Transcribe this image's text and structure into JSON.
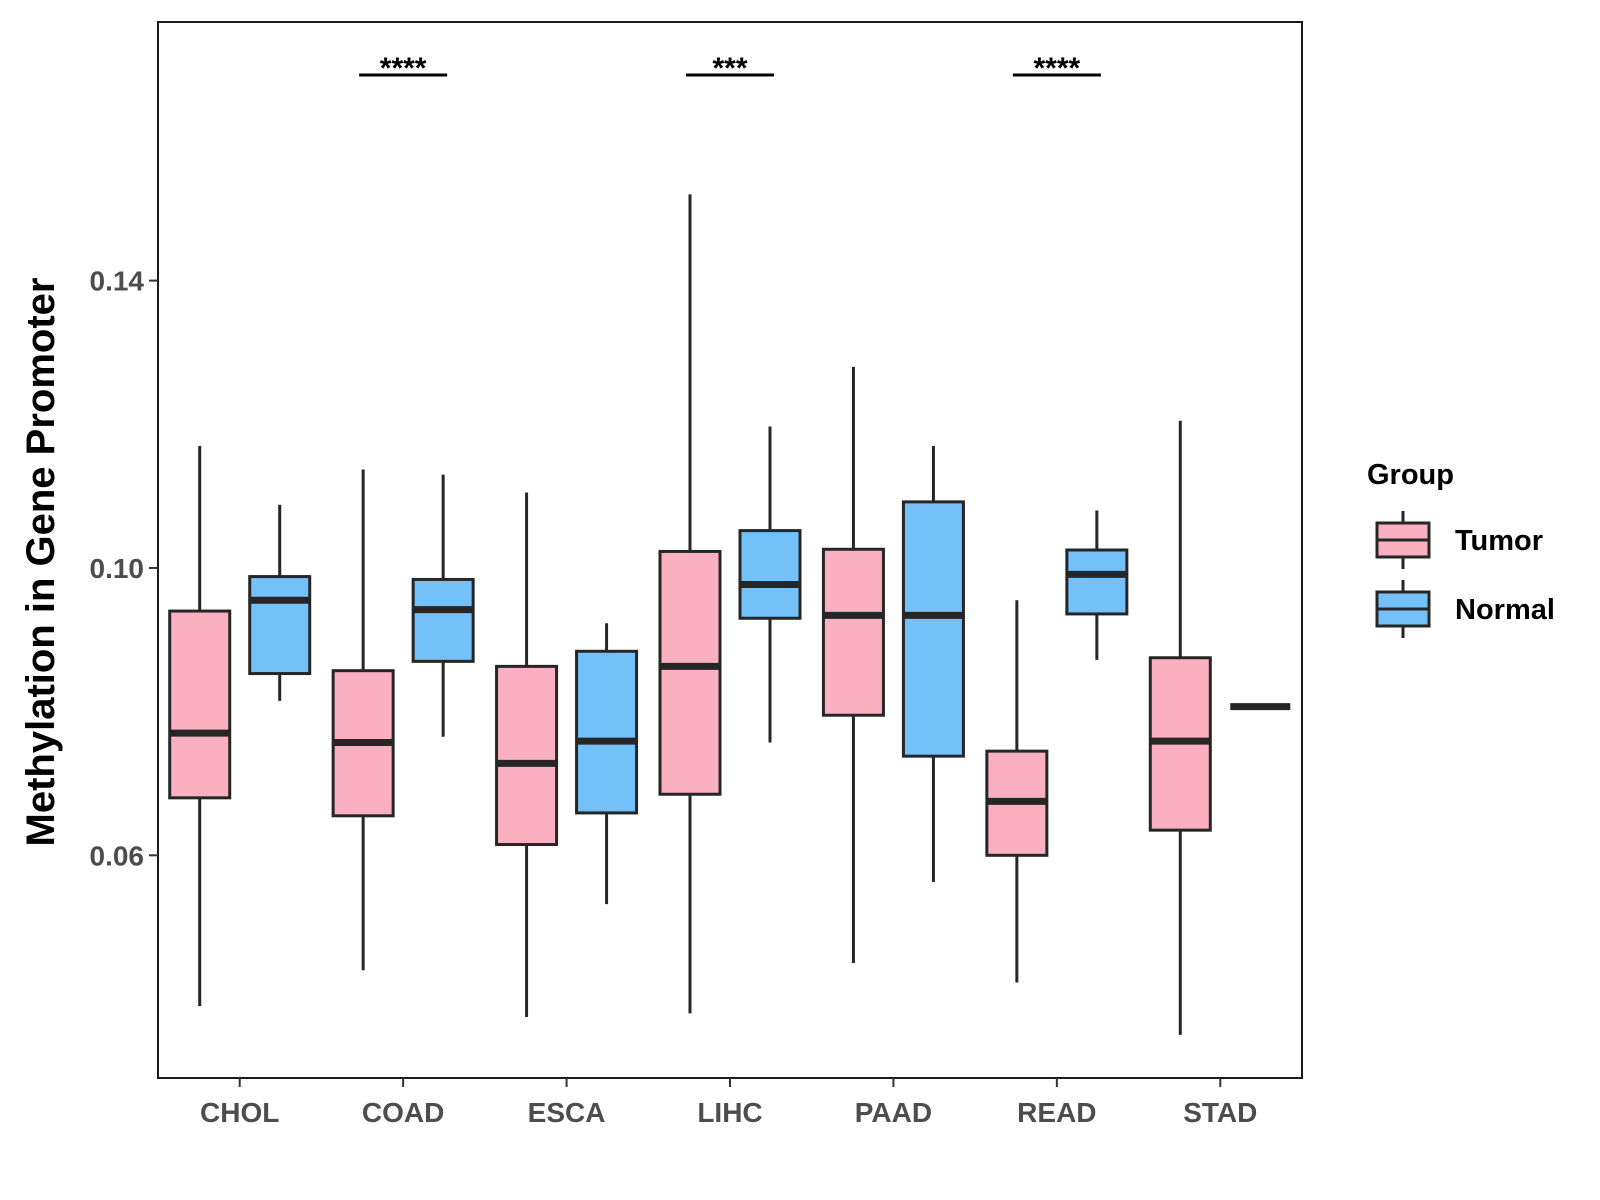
{
  "chart_data": {
    "type": "boxplot",
    "title": "",
    "xlabel": "",
    "ylabel": "Methylation in Gene Promoter",
    "ylim": [
      0.029,
      0.176
    ],
    "yticks": [
      0.06,
      0.1,
      0.14
    ],
    "ytick_labels": [
      "0.06",
      "0.10",
      "0.14"
    ],
    "categories": [
      "CHOL",
      "COAD",
      "ESCA",
      "LIHC",
      "PAAD",
      "READ",
      "STAD"
    ],
    "legend": {
      "title": "Group",
      "position": "right",
      "entries": [
        {
          "name": "Tumor",
          "color": "#fbb0c2"
        },
        {
          "name": "Normal",
          "color": "#74c0f8"
        }
      ]
    },
    "series": [
      {
        "name": "Tumor",
        "color": "#fbb0c2",
        "boxes": [
          {
            "category": "CHOL",
            "whisker_low": 0.039,
            "q1": 0.068,
            "median": 0.077,
            "q3": 0.094,
            "whisker_high": 0.117
          },
          {
            "category": "COAD",
            "whisker_low": 0.044,
            "q1": 0.0655,
            "median": 0.0757,
            "q3": 0.0857,
            "whisker_high": 0.1137
          },
          {
            "category": "ESCA",
            "whisker_low": 0.0375,
            "q1": 0.0615,
            "median": 0.0728,
            "q3": 0.0863,
            "whisker_high": 0.1105
          },
          {
            "category": "LIHC",
            "whisker_low": 0.038,
            "q1": 0.0685,
            "median": 0.0863,
            "q3": 0.1023,
            "whisker_high": 0.152
          },
          {
            "category": "PAAD",
            "whisker_low": 0.045,
            "q1": 0.0795,
            "median": 0.0934,
            "q3": 0.1026,
            "whisker_high": 0.128
          },
          {
            "category": "READ",
            "whisker_low": 0.0423,
            "q1": 0.06,
            "median": 0.0675,
            "q3": 0.0745,
            "whisker_high": 0.0955
          },
          {
            "category": "STAD",
            "whisker_low": 0.035,
            "q1": 0.0635,
            "median": 0.0759,
            "q3": 0.0875,
            "whisker_high": 0.1205
          }
        ]
      },
      {
        "name": "Normal",
        "color": "#74c0f8",
        "boxes": [
          {
            "category": "CHOL",
            "whisker_low": 0.0815,
            "q1": 0.0853,
            "median": 0.0955,
            "q3": 0.0988,
            "whisker_high": 0.1088
          },
          {
            "category": "COAD",
            "whisker_low": 0.0765,
            "q1": 0.087,
            "median": 0.0942,
            "q3": 0.0984,
            "whisker_high": 0.113
          },
          {
            "category": "ESCA",
            "whisker_low": 0.0532,
            "q1": 0.0659,
            "median": 0.0759,
            "q3": 0.0884,
            "whisker_high": 0.0923
          },
          {
            "category": "LIHC",
            "whisker_low": 0.0757,
            "q1": 0.093,
            "median": 0.0977,
            "q3": 0.1052,
            "whisker_high": 0.1197
          },
          {
            "category": "PAAD",
            "whisker_low": 0.0563,
            "q1": 0.0738,
            "median": 0.0934,
            "q3": 0.1092,
            "whisker_high": 0.117
          },
          {
            "category": "READ",
            "whisker_low": 0.0872,
            "q1": 0.0936,
            "median": 0.0991,
            "q3": 0.1025,
            "whisker_high": 0.108
          },
          {
            "category": "STAD",
            "whisker_low": 0.0807,
            "q1": 0.0807,
            "median": 0.0807,
            "q3": 0.0807,
            "whisker_high": 0.0807
          }
        ]
      }
    ],
    "significance": [
      {
        "category": "COAD",
        "label": "****"
      },
      {
        "category": "LIHC",
        "label": "***"
      },
      {
        "category": "READ",
        "label": "****"
      }
    ]
  }
}
